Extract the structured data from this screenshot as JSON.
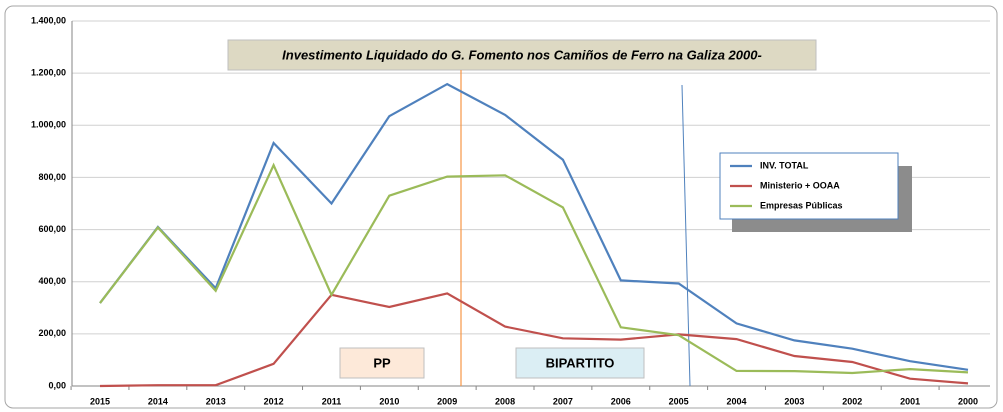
{
  "chart_data": {
    "type": "line",
    "title": "Investimento Liquidado do G. Fomento nos Camiños de Ferro  na Galiza 2000-",
    "categories": [
      "2015",
      "2014",
      "2013",
      "2012",
      "2011",
      "2010",
      "2009",
      "2008",
      "2007",
      "2006",
      "2005",
      "2004",
      "2003",
      "2002",
      "2001",
      "2000"
    ],
    "series": [
      {
        "name": "INV. TOTAL",
        "color": "#4f81bd",
        "values": [
          318,
          610,
          375,
          932,
          700,
          1035,
          1158,
          1040,
          868,
          405,
          393,
          240,
          175,
          143,
          95,
          62
        ]
      },
      {
        "name": "Ministerio + OOAA",
        "color": "#c0504d",
        "values": [
          0,
          3,
          3,
          85,
          350,
          303,
          355,
          228,
          183,
          178,
          198,
          180,
          115,
          92,
          28,
          10
        ]
      },
      {
        "name": "Empresas Públicas",
        "color": "#9bbb59",
        "values": [
          318,
          608,
          365,
          847,
          350,
          730,
          803,
          808,
          685,
          225,
          195,
          58,
          57,
          50,
          65,
          52
        ]
      }
    ],
    "ylim": [
      0,
      1400
    ],
    "yticks": [
      {
        "value": 0,
        "label": "0,00"
      },
      {
        "value": 200,
        "label": "200,00"
      },
      {
        "value": 400,
        "label": "400,00"
      },
      {
        "value": 600,
        "label": "600,00"
      },
      {
        "value": 800,
        "label": "800,00"
      },
      {
        "value": 1000,
        "label": "1.000,00"
      },
      {
        "value": 1200,
        "label": "1.200,00"
      },
      {
        "value": 1400,
        "label": "1.400,00"
      }
    ],
    "grid": true,
    "annotations": [
      "PP",
      "BIPARTITO"
    ]
  }
}
